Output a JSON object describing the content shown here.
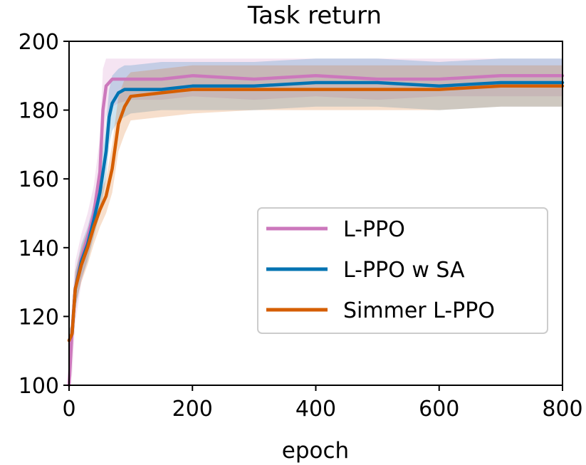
{
  "chart_data": {
    "type": "line",
    "title": "Task return",
    "xlabel": "epoch",
    "ylabel": "",
    "xlim": [
      0,
      800
    ],
    "ylim": [
      100,
      200
    ],
    "xticks": [
      0,
      200,
      400,
      600,
      800
    ],
    "yticks": [
      100,
      120,
      140,
      160,
      180,
      200
    ],
    "grid": false,
    "legend_position": "center-right",
    "series": [
      {
        "name": "L-PPO",
        "color": "#cc78bc",
        "x": [
          0,
          5,
          10,
          20,
          30,
          40,
          50,
          55,
          60,
          70,
          80,
          100,
          150,
          200,
          300,
          400,
          500,
          600,
          700,
          800
        ],
        "y": [
          100,
          116,
          128,
          137,
          143,
          150,
          162,
          180,
          187,
          189,
          189,
          189,
          189,
          190,
          189,
          190,
          189,
          189,
          190,
          190
        ],
        "band_low": [
          100,
          103,
          118,
          130,
          137,
          144,
          154,
          168,
          178,
          181,
          182,
          183,
          183,
          184,
          183,
          184,
          183,
          184,
          184,
          184
        ],
        "band_high": [
          105,
          125,
          136,
          144,
          150,
          158,
          172,
          192,
          195,
          195,
          195,
          195,
          195,
          195,
          195,
          195,
          195,
          195,
          195,
          195
        ]
      },
      {
        "name": "L-PPO w SA",
        "color": "#0173b2",
        "x": [
          0,
          5,
          10,
          20,
          30,
          40,
          50,
          60,
          65,
          70,
          80,
          90,
          100,
          150,
          200,
          300,
          400,
          500,
          600,
          700,
          800
        ],
        "y": [
          113,
          115,
          128,
          136,
          141,
          148,
          156,
          168,
          178,
          182,
          185,
          186,
          186,
          186,
          187,
          187,
          188,
          188,
          187,
          188,
          188
        ],
        "band_low": [
          110,
          112,
          122,
          131,
          136,
          143,
          150,
          160,
          170,
          174,
          177,
          178,
          179,
          180,
          180,
          180,
          181,
          181,
          180,
          181,
          181
        ],
        "band_high": [
          116,
          118,
          133,
          141,
          146,
          153,
          162,
          176,
          186,
          190,
          192,
          193,
          193,
          194,
          194,
          194,
          195,
          195,
          194,
          195,
          195
        ]
      },
      {
        "name": "Simmer L-PPO",
        "color": "#d55e00",
        "x": [
          0,
          5,
          10,
          20,
          30,
          40,
          50,
          60,
          70,
          80,
          90,
          100,
          150,
          200,
          300,
          400,
          500,
          600,
          700,
          800
        ],
        "y": [
          113,
          115,
          128,
          135,
          140,
          146,
          151,
          155,
          163,
          176,
          181,
          184,
          185,
          186,
          186,
          186,
          186,
          186,
          187,
          187
        ],
        "band_low": [
          110,
          112,
          123,
          130,
          135,
          141,
          146,
          150,
          156,
          168,
          173,
          177,
          178,
          179,
          180,
          180,
          180,
          180,
          181,
          181
        ],
        "band_high": [
          116,
          118,
          133,
          140,
          145,
          151,
          156,
          160,
          170,
          184,
          189,
          191,
          192,
          193,
          193,
          193,
          193,
          193,
          193,
          193
        ]
      }
    ]
  }
}
